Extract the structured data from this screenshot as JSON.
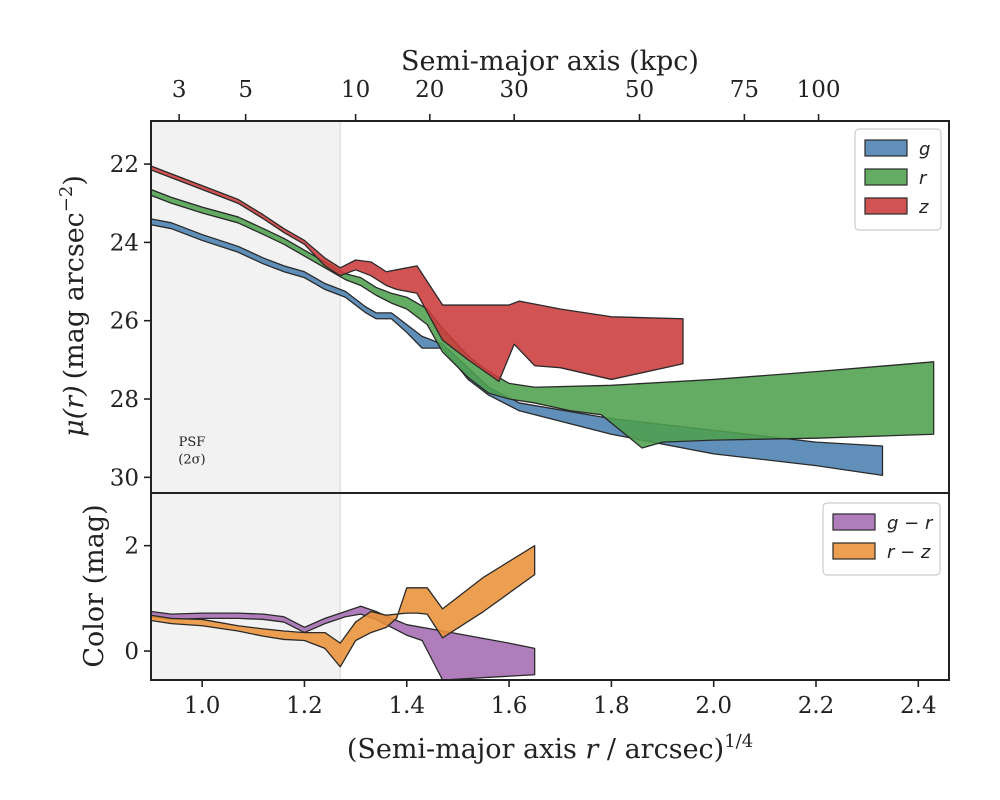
{
  "chart_data": [
    {
      "panel": "profile",
      "type": "area",
      "ylabel_main": "μ(r)",
      "ylabel_unit": "(mag arcsec",
      "ylabel_exp": "−2",
      "ylabel_close": ")",
      "xlim": [
        0.9,
        2.46
      ],
      "ylim": [
        30.4,
        20.9
      ],
      "y_inverted": true,
      "grid": false,
      "legend_placement": "upper-right",
      "yticks": [
        22,
        24,
        26,
        28,
        30
      ],
      "xticks": [
        1.0,
        1.2,
        1.4,
        1.6,
        1.8,
        2.0,
        2.2,
        2.4
      ],
      "top_axis": {
        "label": "Semi-major axis (kpc)",
        "ticks": [
          {
            "label": "3",
            "at": 0.955
          },
          {
            "label": "5",
            "at": 1.085
          },
          {
            "label": "10",
            "at": 1.3
          },
          {
            "label": "20",
            "at": 1.445
          },
          {
            "label": "30",
            "at": 1.61
          },
          {
            "label": "50",
            "at": 1.855
          },
          {
            "label": "75",
            "at": 2.06
          },
          {
            "label": "100",
            "at": 2.205
          }
        ]
      },
      "psf": {
        "label_line1": "PSF",
        "label_line2": "(2σ)",
        "x_max": 1.27
      },
      "series": [
        {
          "name": "g",
          "color": "#4a7fb0",
          "upper": [
            [
              0.9,
              23.4
            ],
            [
              0.94,
              23.5
            ],
            [
              1.0,
              23.8
            ],
            [
              1.07,
              24.1
            ],
            [
              1.12,
              24.4
            ],
            [
              1.16,
              24.6
            ],
            [
              1.2,
              24.75
            ],
            [
              1.24,
              25.05
            ],
            [
              1.28,
              25.25
            ],
            [
              1.32,
              25.65
            ],
            [
              1.34,
              25.8
            ],
            [
              1.37,
              25.8
            ],
            [
              1.4,
              26.1
            ],
            [
              1.43,
              26.4
            ],
            [
              1.47,
              26.6
            ],
            [
              1.52,
              27.2
            ],
            [
              1.56,
              27.7
            ],
            [
              1.62,
              28.1
            ],
            [
              1.8,
              28.5
            ],
            [
              2.0,
              28.8
            ],
            [
              2.2,
              29.1
            ],
            [
              2.33,
              29.2
            ]
          ],
          "lower": [
            [
              0.9,
              23.55
            ],
            [
              0.94,
              23.65
            ],
            [
              1.0,
              23.95
            ],
            [
              1.07,
              24.25
            ],
            [
              1.12,
              24.55
            ],
            [
              1.16,
              24.75
            ],
            [
              1.2,
              24.9
            ],
            [
              1.24,
              25.2
            ],
            [
              1.28,
              25.4
            ],
            [
              1.32,
              25.8
            ],
            [
              1.34,
              25.95
            ],
            [
              1.37,
              25.95
            ],
            [
              1.4,
              26.3
            ],
            [
              1.43,
              26.7
            ],
            [
              1.47,
              26.7
            ],
            [
              1.52,
              27.5
            ],
            [
              1.56,
              27.9
            ],
            [
              1.62,
              28.3
            ],
            [
              1.8,
              28.9
            ],
            [
              2.0,
              29.4
            ],
            [
              2.2,
              29.7
            ],
            [
              2.33,
              29.95
            ]
          ]
        },
        {
          "name": "r",
          "color": "#4fa04f",
          "upper": [
            [
              0.9,
              22.65
            ],
            [
              0.94,
              22.85
            ],
            [
              1.0,
              23.1
            ],
            [
              1.07,
              23.35
            ],
            [
              1.12,
              23.65
            ],
            [
              1.16,
              23.9
            ],
            [
              1.2,
              24.2
            ],
            [
              1.24,
              24.5
            ],
            [
              1.28,
              24.8
            ],
            [
              1.31,
              24.9
            ],
            [
              1.34,
              25.15
            ],
            [
              1.37,
              25.3
            ],
            [
              1.4,
              25.4
            ],
            [
              1.44,
              25.7
            ],
            [
              1.47,
              26.2
            ],
            [
              1.52,
              26.9
            ],
            [
              1.56,
              27.3
            ],
            [
              1.6,
              27.6
            ],
            [
              1.65,
              27.7
            ],
            [
              1.8,
              27.65
            ],
            [
              2.0,
              27.5
            ],
            [
              2.2,
              27.3
            ],
            [
              2.43,
              27.05
            ]
          ],
          "lower": [
            [
              0.9,
              22.8
            ],
            [
              0.94,
              23.0
            ],
            [
              1.0,
              23.25
            ],
            [
              1.07,
              23.5
            ],
            [
              1.12,
              23.8
            ],
            [
              1.16,
              24.05
            ],
            [
              1.2,
              24.35
            ],
            [
              1.24,
              24.65
            ],
            [
              1.28,
              24.95
            ],
            [
              1.31,
              25.1
            ],
            [
              1.34,
              25.35
            ],
            [
              1.37,
              25.55
            ],
            [
              1.4,
              25.7
            ],
            [
              1.44,
              26.1
            ],
            [
              1.47,
              26.8
            ],
            [
              1.52,
              27.45
            ],
            [
              1.56,
              27.85
            ],
            [
              1.6,
              28.0
            ],
            [
              1.65,
              28.1
            ],
            [
              1.72,
              28.3
            ],
            [
              1.78,
              28.4
            ],
            [
              1.86,
              29.25
            ],
            [
              1.9,
              29.1
            ],
            [
              2.0,
              29.05
            ],
            [
              2.2,
              29.0
            ],
            [
              2.43,
              28.9
            ]
          ]
        },
        {
          "name": "z",
          "color": "#cc3b3b",
          "upper": [
            [
              0.9,
              22.05
            ],
            [
              0.94,
              22.25
            ],
            [
              1.0,
              22.55
            ],
            [
              1.07,
              22.9
            ],
            [
              1.12,
              23.3
            ],
            [
              1.16,
              23.65
            ],
            [
              1.2,
              23.95
            ],
            [
              1.24,
              24.4
            ],
            [
              1.27,
              24.65
            ],
            [
              1.3,
              24.45
            ],
            [
              1.33,
              24.5
            ],
            [
              1.36,
              24.75
            ],
            [
              1.38,
              24.7
            ],
            [
              1.42,
              24.6
            ],
            [
              1.47,
              25.6
            ],
            [
              1.52,
              25.6
            ],
            [
              1.6,
              25.6
            ],
            [
              1.62,
              25.5
            ],
            [
              1.7,
              25.7
            ],
            [
              1.8,
              25.9
            ],
            [
              1.94,
              25.95
            ]
          ],
          "lower": [
            [
              0.9,
              22.15
            ],
            [
              0.94,
              22.35
            ],
            [
              1.0,
              22.65
            ],
            [
              1.07,
              23.0
            ],
            [
              1.12,
              23.4
            ],
            [
              1.16,
              23.75
            ],
            [
              1.2,
              24.05
            ],
            [
              1.24,
              24.6
            ],
            [
              1.27,
              24.85
            ],
            [
              1.3,
              24.7
            ],
            [
              1.33,
              24.85
            ],
            [
              1.36,
              25.1
            ],
            [
              1.38,
              25.2
            ],
            [
              1.42,
              25.3
            ],
            [
              1.47,
              26.5
            ],
            [
              1.52,
              27.0
            ],
            [
              1.58,
              27.55
            ],
            [
              1.61,
              26.6
            ],
            [
              1.65,
              27.15
            ],
            [
              1.7,
              27.2
            ],
            [
              1.8,
              27.5
            ],
            [
              1.94,
              27.1
            ]
          ]
        }
      ]
    },
    {
      "panel": "color",
      "type": "area",
      "ylabel": "Color (mag)",
      "xlabel_main": "(Semi-major axis ",
      "xlabel_var": "r",
      "xlabel_unit": " / arcsec)",
      "xlabel_exp": "1/4",
      "xlim": [
        0.9,
        2.46
      ],
      "ylim": [
        -0.55,
        3.0
      ],
      "grid": false,
      "legend_placement": "upper-right",
      "yticks": [
        0,
        2
      ],
      "xticks": [
        1.0,
        1.2,
        1.4,
        1.6,
        1.8,
        2.0,
        2.2,
        2.4
      ],
      "series": [
        {
          "name": "g − r",
          "color": "#a46cb0",
          "upper": [
            [
              0.9,
              0.75
            ],
            [
              0.94,
              0.7
            ],
            [
              1.0,
              0.72
            ],
            [
              1.07,
              0.72
            ],
            [
              1.12,
              0.7
            ],
            [
              1.16,
              0.65
            ],
            [
              1.2,
              0.45
            ],
            [
              1.24,
              0.62
            ],
            [
              1.28,
              0.75
            ],
            [
              1.31,
              0.85
            ],
            [
              1.34,
              0.75
            ],
            [
              1.37,
              0.62
            ],
            [
              1.4,
              0.5
            ],
            [
              1.47,
              0.38
            ],
            [
              1.6,
              0.15
            ],
            [
              1.65,
              0.05
            ]
          ],
          "lower": [
            [
              0.9,
              0.65
            ],
            [
              0.94,
              0.6
            ],
            [
              1.0,
              0.62
            ],
            [
              1.07,
              0.62
            ],
            [
              1.12,
              0.6
            ],
            [
              1.16,
              0.55
            ],
            [
              1.2,
              0.35
            ],
            [
              1.24,
              0.52
            ],
            [
              1.28,
              0.65
            ],
            [
              1.31,
              0.7
            ],
            [
              1.34,
              0.6
            ],
            [
              1.37,
              0.45
            ],
            [
              1.4,
              0.3
            ],
            [
              1.43,
              0.2
            ],
            [
              1.47,
              -0.55
            ],
            [
              1.65,
              -0.45
            ]
          ]
        },
        {
          "name": "r − z",
          "color": "#e99238",
          "upper": [
            [
              0.9,
              0.68
            ],
            [
              0.94,
              0.62
            ],
            [
              1.0,
              0.6
            ],
            [
              1.07,
              0.48
            ],
            [
              1.12,
              0.42
            ],
            [
              1.16,
              0.38
            ],
            [
              1.2,
              0.35
            ],
            [
              1.24,
              0.35
            ],
            [
              1.27,
              0.15
            ],
            [
              1.3,
              0.55
            ],
            [
              1.33,
              0.75
            ],
            [
              1.36,
              0.68
            ],
            [
              1.4,
              0.72
            ],
            [
              1.42,
              0.72
            ],
            [
              1.44,
              0.7
            ],
            [
              1.47,
              0.25
            ],
            [
              1.55,
              0.75
            ],
            [
              1.65,
              1.45
            ]
          ],
          "lower": [
            [
              0.9,
              0.58
            ],
            [
              0.94,
              0.52
            ],
            [
              1.0,
              0.48
            ],
            [
              1.07,
              0.38
            ],
            [
              1.12,
              0.28
            ],
            [
              1.16,
              0.22
            ],
            [
              1.2,
              0.2
            ],
            [
              1.24,
              0.05
            ],
            [
              1.27,
              -0.3
            ],
            [
              1.3,
              0.2
            ],
            [
              1.33,
              0.35
            ],
            [
              1.36,
              0.45
            ],
            [
              1.38,
              0.62
            ],
            [
              1.4,
              1.2
            ],
            [
              1.44,
              1.2
            ],
            [
              1.47,
              0.8
            ],
            [
              1.55,
              1.4
            ],
            [
              1.65,
              2.0
            ]
          ]
        }
      ]
    }
  ]
}
